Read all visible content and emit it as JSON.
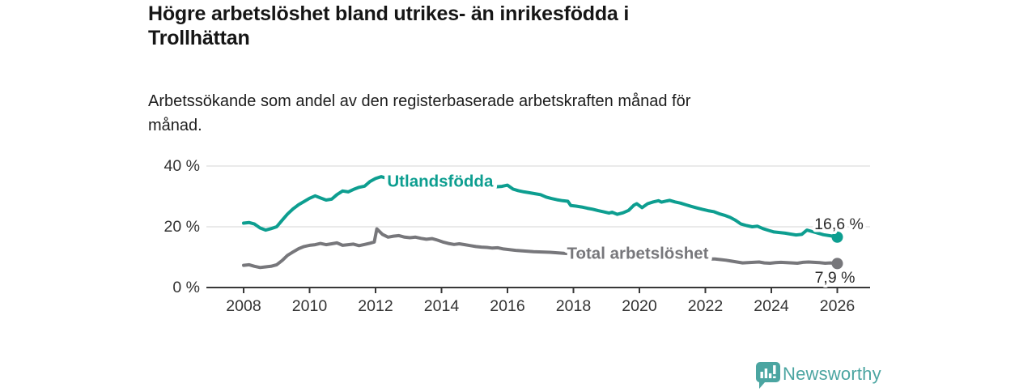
{
  "header": {
    "title": "Högre arbetslöshet bland utrikes- än inrikesfödda i\nTrollhättan",
    "subtitle": "Arbetssökande som andel av den registerbaserade arbetskraften månad för\nmånad."
  },
  "chart_data": {
    "type": "line",
    "title": "Högre arbetslöshet bland utrikes- än inrikesfödda i Trollhättan",
    "subtitle": "Arbetssökande som andel av den registerbaserade arbetskraften månad för månad.",
    "grid": true,
    "legend_position": "inline",
    "colors": {
      "grid": "#dddddd",
      "axis": "#383838",
      "tick_text": "#333333",
      "annotation_text": "#2b2b2b"
    },
    "x_axis": {
      "min": 2008,
      "max": 2026,
      "ticks": [
        2008,
        2010,
        2012,
        2014,
        2016,
        2018,
        2020,
        2022,
        2024,
        2026
      ]
    },
    "y_axis": {
      "min": 0,
      "max": 42,
      "ticks": [
        0,
        20,
        40
      ],
      "tick_labels": [
        "0 %",
        "20 %",
        "40 %"
      ]
    },
    "series": [
      {
        "name": "Utlandsfödda",
        "color": "#0d9e90",
        "inline_label": {
          "text": "Utlandsfödda",
          "x": 2013.96,
          "y": 34.9
        },
        "end_label": {
          "text": "16,6 %",
          "side": "above"
        },
        "points": [
          [
            2008.0,
            21.2
          ],
          [
            2008.17,
            21.4
          ],
          [
            2008.33,
            20.9
          ],
          [
            2008.5,
            19.6
          ],
          [
            2008.67,
            18.9
          ],
          [
            2008.83,
            19.4
          ],
          [
            2009.0,
            20.0
          ],
          [
            2009.17,
            22.2
          ],
          [
            2009.33,
            24.2
          ],
          [
            2009.5,
            25.9
          ],
          [
            2009.67,
            27.3
          ],
          [
            2009.83,
            28.3
          ],
          [
            2010.0,
            29.4
          ],
          [
            2010.17,
            30.2
          ],
          [
            2010.33,
            29.5
          ],
          [
            2010.5,
            28.8
          ],
          [
            2010.67,
            29.1
          ],
          [
            2010.83,
            30.6
          ],
          [
            2011.0,
            31.8
          ],
          [
            2011.17,
            31.5
          ],
          [
            2011.33,
            32.3
          ],
          [
            2011.5,
            33.0
          ],
          [
            2011.67,
            33.4
          ],
          [
            2011.83,
            34.9
          ],
          [
            2012.0,
            35.9
          ],
          [
            2012.17,
            36.5
          ],
          [
            2012.33,
            36.0
          ],
          [
            2012.58,
            35.3
          ],
          [
            2012.83,
            34.9
          ],
          [
            2013.08,
            34.5
          ],
          [
            2013.33,
            34.3
          ],
          [
            2013.58,
            34.0
          ],
          [
            2013.83,
            33.8
          ],
          [
            2014.08,
            33.6
          ],
          [
            2014.33,
            33.5
          ],
          [
            2014.58,
            33.6
          ],
          [
            2014.83,
            33.3
          ],
          [
            2015.08,
            33.5
          ],
          [
            2015.33,
            33.3
          ],
          [
            2015.58,
            33.1
          ],
          [
            2015.83,
            33.3
          ],
          [
            2016.0,
            33.7
          ],
          [
            2016.17,
            32.4
          ],
          [
            2016.33,
            31.9
          ],
          [
            2016.5,
            31.5
          ],
          [
            2016.67,
            31.2
          ],
          [
            2016.83,
            30.9
          ],
          [
            2017.0,
            30.6
          ],
          [
            2017.17,
            29.8
          ],
          [
            2017.33,
            29.3
          ],
          [
            2017.5,
            28.9
          ],
          [
            2017.67,
            28.6
          ],
          [
            2017.83,
            28.4
          ],
          [
            2017.92,
            27.0
          ],
          [
            2018.08,
            26.8
          ],
          [
            2018.25,
            26.5
          ],
          [
            2018.42,
            26.1
          ],
          [
            2018.58,
            25.8
          ],
          [
            2018.75,
            25.3
          ],
          [
            2018.92,
            24.9
          ],
          [
            2019.08,
            24.5
          ],
          [
            2019.17,
            24.8
          ],
          [
            2019.33,
            24.1
          ],
          [
            2019.5,
            24.6
          ],
          [
            2019.67,
            25.4
          ],
          [
            2019.83,
            27.1
          ],
          [
            2019.92,
            27.6
          ],
          [
            2020.08,
            26.3
          ],
          [
            2020.25,
            27.6
          ],
          [
            2020.42,
            28.2
          ],
          [
            2020.58,
            28.6
          ],
          [
            2020.67,
            28.1
          ],
          [
            2020.83,
            28.5
          ],
          [
            2020.92,
            28.7
          ],
          [
            2021.08,
            28.2
          ],
          [
            2021.25,
            27.8
          ],
          [
            2021.42,
            27.2
          ],
          [
            2021.58,
            26.7
          ],
          [
            2021.75,
            26.2
          ],
          [
            2021.92,
            25.7
          ],
          [
            2022.08,
            25.3
          ],
          [
            2022.25,
            25.0
          ],
          [
            2022.42,
            24.3
          ],
          [
            2022.58,
            23.8
          ],
          [
            2022.75,
            23.1
          ],
          [
            2022.92,
            22.1
          ],
          [
            2023.08,
            20.9
          ],
          [
            2023.25,
            20.4
          ],
          [
            2023.42,
            20.0
          ],
          [
            2023.58,
            20.2
          ],
          [
            2023.75,
            19.4
          ],
          [
            2023.92,
            18.8
          ],
          [
            2024.08,
            18.3
          ],
          [
            2024.25,
            18.1
          ],
          [
            2024.42,
            17.9
          ],
          [
            2024.58,
            17.6
          ],
          [
            2024.75,
            17.3
          ],
          [
            2024.92,
            17.5
          ],
          [
            2025.08,
            18.9
          ],
          [
            2025.25,
            18.4
          ],
          [
            2025.42,
            17.9
          ],
          [
            2025.58,
            17.4
          ],
          [
            2025.75,
            17.1
          ],
          [
            2025.92,
            16.8
          ],
          [
            2026.0,
            16.6
          ]
        ]
      },
      {
        "name": "Total arbetslöshet",
        "color": "#77777b",
        "inline_label": {
          "text": "Total arbetslöshet",
          "x": 2019.95,
          "y": 11.2
        },
        "end_label": {
          "text": "7,9 %",
          "side": "below"
        },
        "points": [
          [
            2008.0,
            7.3
          ],
          [
            2008.17,
            7.5
          ],
          [
            2008.33,
            7.0
          ],
          [
            2008.5,
            6.6
          ],
          [
            2008.67,
            6.8
          ],
          [
            2008.83,
            7.0
          ],
          [
            2009.0,
            7.5
          ],
          [
            2009.17,
            8.9
          ],
          [
            2009.33,
            10.6
          ],
          [
            2009.5,
            11.7
          ],
          [
            2009.67,
            12.8
          ],
          [
            2009.83,
            13.5
          ],
          [
            2010.0,
            13.9
          ],
          [
            2010.17,
            14.1
          ],
          [
            2010.33,
            14.5
          ],
          [
            2010.5,
            14.1
          ],
          [
            2010.67,
            14.4
          ],
          [
            2010.83,
            14.7
          ],
          [
            2011.0,
            13.9
          ],
          [
            2011.17,
            14.1
          ],
          [
            2011.33,
            14.3
          ],
          [
            2011.5,
            13.8
          ],
          [
            2011.67,
            14.2
          ],
          [
            2011.83,
            14.6
          ],
          [
            2011.96,
            15.0
          ],
          [
            2012.04,
            19.3
          ],
          [
            2012.21,
            17.5
          ],
          [
            2012.38,
            16.6
          ],
          [
            2012.54,
            16.9
          ],
          [
            2012.71,
            17.1
          ],
          [
            2012.88,
            16.6
          ],
          [
            2013.04,
            16.4
          ],
          [
            2013.21,
            16.6
          ],
          [
            2013.38,
            16.2
          ],
          [
            2013.54,
            15.9
          ],
          [
            2013.71,
            16.1
          ],
          [
            2013.88,
            15.6
          ],
          [
            2014.04,
            15.0
          ],
          [
            2014.21,
            14.5
          ],
          [
            2014.38,
            14.2
          ],
          [
            2014.54,
            14.4
          ],
          [
            2014.71,
            14.1
          ],
          [
            2014.88,
            13.8
          ],
          [
            2015.04,
            13.5
          ],
          [
            2015.21,
            13.3
          ],
          [
            2015.38,
            13.2
          ],
          [
            2015.54,
            13.0
          ],
          [
            2015.71,
            13.1
          ],
          [
            2015.88,
            12.7
          ],
          [
            2016.04,
            12.5
          ],
          [
            2016.29,
            12.2
          ],
          [
            2016.54,
            12.0
          ],
          [
            2016.79,
            11.8
          ],
          [
            2017.04,
            11.7
          ],
          [
            2017.29,
            11.6
          ],
          [
            2017.54,
            11.4
          ],
          [
            2017.79,
            11.2
          ],
          [
            2018.04,
            10.9
          ],
          [
            2018.29,
            10.7
          ],
          [
            2018.54,
            10.5
          ],
          [
            2018.79,
            10.3
          ],
          [
            2019.04,
            10.1
          ],
          [
            2019.29,
            10.0
          ],
          [
            2019.54,
            9.9
          ],
          [
            2019.79,
            9.9
          ],
          [
            2020.04,
            9.8
          ],
          [
            2020.29,
            9.8
          ],
          [
            2020.54,
            9.7
          ],
          [
            2020.79,
            9.7
          ],
          [
            2021.04,
            9.6
          ],
          [
            2021.29,
            9.6
          ],
          [
            2021.54,
            9.5
          ],
          [
            2021.79,
            9.5
          ],
          [
            2022.04,
            9.4
          ],
          [
            2022.29,
            9.4
          ],
          [
            2022.46,
            9.2
          ],
          [
            2022.63,
            9.0
          ],
          [
            2022.79,
            8.7
          ],
          [
            2022.96,
            8.4
          ],
          [
            2023.13,
            8.1
          ],
          [
            2023.29,
            8.2
          ],
          [
            2023.46,
            8.3
          ],
          [
            2023.63,
            8.4
          ],
          [
            2023.79,
            8.1
          ],
          [
            2023.96,
            8.0
          ],
          [
            2024.13,
            8.2
          ],
          [
            2024.29,
            8.3
          ],
          [
            2024.46,
            8.2
          ],
          [
            2024.63,
            8.1
          ],
          [
            2024.79,
            8.0
          ],
          [
            2024.96,
            8.3
          ],
          [
            2025.13,
            8.4
          ],
          [
            2025.29,
            8.3
          ],
          [
            2025.46,
            8.2
          ],
          [
            2025.63,
            8.0
          ],
          [
            2025.79,
            8.1
          ],
          [
            2026.0,
            7.9
          ]
        ]
      }
    ]
  },
  "footer": {
    "brand": "Newsworthy",
    "brand_color": "#4ba5a1",
    "logo_icon": "bar-chart-speech-bubble"
  }
}
